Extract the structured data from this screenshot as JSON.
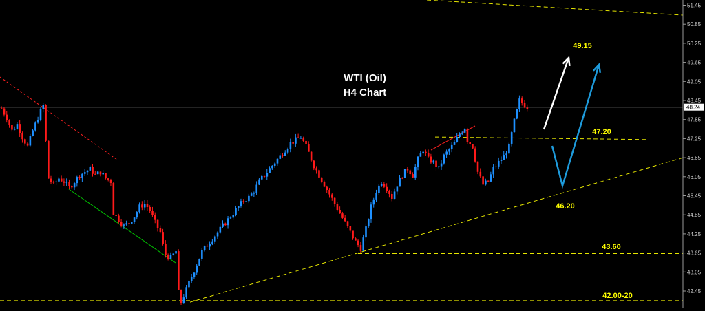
{
  "chart_data": {
    "type": "candlestick",
    "title": "WTI (Oil)",
    "subtitle": "H4 Chart",
    "yaxis": {
      "ticks": [
        "51.45",
        "50.85",
        "50.25",
        "49.65",
        "49.05",
        "48.45",
        "47.85",
        "47.25",
        "46.65",
        "46.05",
        "45.45",
        "44.85",
        "44.25",
        "43.65",
        "43.05",
        "42.45"
      ],
      "range": [
        42.0,
        51.6
      ],
      "position": "right"
    },
    "current_price": "48.24",
    "levels": [
      {
        "label": "49.15",
        "value": 49.15,
        "role": "upside target"
      },
      {
        "label": "47.20",
        "value": 47.2,
        "role": "resistance"
      },
      {
        "label": "46.20",
        "value": 46.2,
        "role": "trendline support"
      },
      {
        "label": "43.60",
        "value": 43.6,
        "role": "support"
      },
      {
        "label": "42.00-20",
        "value": 42.1,
        "role": "major support"
      }
    ],
    "colors": {
      "bull": "#1e90ff",
      "bear": "#ff1a1a",
      "level_line": "#e6e600",
      "level_text": "#ffff00",
      "current_line": "#8c8c8c",
      "arrow_primary": "#ffffff",
      "arrow_alternate": "#1e9bdc",
      "downtrend_line": "#ff2020",
      "channel_line": "#00c000"
    },
    "price_path": [
      [
        0,
        48.2
      ],
      [
        2,
        47.9
      ],
      [
        4,
        47.5
      ],
      [
        6,
        47.7
      ],
      [
        8,
        47.3
      ],
      [
        10,
        47.0
      ],
      [
        12,
        47.5
      ],
      [
        14,
        47.9
      ],
      [
        16,
        48.3
      ],
      [
        18,
        46.0
      ],
      [
        20,
        45.8
      ],
      [
        22,
        46.0
      ],
      [
        24,
        45.9
      ],
      [
        26,
        45.7
      ],
      [
        28,
        45.9
      ],
      [
        30,
        46.1
      ],
      [
        32,
        46.2
      ],
      [
        34,
        46.3
      ],
      [
        36,
        46.1
      ],
      [
        38,
        46.2
      ],
      [
        40,
        46.0
      ],
      [
        42,
        45.9
      ],
      [
        43,
        44.9
      ],
      [
        45,
        44.7
      ],
      [
        47,
        44.5
      ],
      [
        49,
        44.6
      ],
      [
        51,
        44.8
      ],
      [
        53,
        45.1
      ],
      [
        55,
        45.2
      ],
      [
        57,
        45.0
      ],
      [
        59,
        44.6
      ],
      [
        61,
        44.3
      ],
      [
        62,
        43.9
      ],
      [
        63,
        43.6
      ],
      [
        65,
        43.5
      ],
      [
        67,
        43.7
      ],
      [
        68,
        42.4
      ],
      [
        69,
        42.1
      ],
      [
        71,
        42.5
      ],
      [
        73,
        42.9
      ],
      [
        75,
        43.3
      ],
      [
        77,
        43.7
      ],
      [
        79,
        43.9
      ],
      [
        81,
        44.1
      ],
      [
        83,
        44.3
      ],
      [
        85,
        44.5
      ],
      [
        87,
        44.7
      ],
      [
        89,
        44.9
      ],
      [
        91,
        45.1
      ],
      [
        93,
        45.3
      ],
      [
        95,
        45.4
      ],
      [
        97,
        45.6
      ],
      [
        99,
        45.9
      ],
      [
        101,
        46.1
      ],
      [
        103,
        46.3
      ],
      [
        105,
        46.5
      ],
      [
        107,
        46.7
      ],
      [
        109,
        46.9
      ],
      [
        111,
        47.1
      ],
      [
        113,
        47.2
      ],
      [
        115,
        47.3
      ],
      [
        117,
        47.0
      ],
      [
        118,
        46.8
      ],
      [
        120,
        46.4
      ],
      [
        122,
        46.1
      ],
      [
        124,
        45.8
      ],
      [
        126,
        45.5
      ],
      [
        128,
        45.2
      ],
      [
        130,
        44.9
      ],
      [
        132,
        44.6
      ],
      [
        134,
        44.3
      ],
      [
        136,
        44.0
      ],
      [
        138,
        43.8
      ],
      [
        140,
        44.4
      ],
      [
        142,
        45.1
      ],
      [
        144,
        45.6
      ],
      [
        146,
        45.9
      ],
      [
        148,
        45.7
      ],
      [
        150,
        45.4
      ],
      [
        152,
        45.8
      ],
      [
        154,
        46.1
      ],
      [
        156,
        46.3
      ],
      [
        158,
        46.1
      ],
      [
        160,
        46.6
      ],
      [
        162,
        46.9
      ],
      [
        164,
        46.6
      ],
      [
        166,
        46.5
      ],
      [
        168,
        46.3
      ],
      [
        170,
        46.7
      ],
      [
        172,
        46.9
      ],
      [
        174,
        47.1
      ],
      [
        176,
        47.4
      ],
      [
        178,
        47.6
      ],
      [
        179,
        47.2
      ],
      [
        181,
        47.0
      ],
      [
        183,
        46.2
      ],
      [
        185,
        45.8
      ],
      [
        187,
        45.9
      ],
      [
        189,
        46.3
      ],
      [
        191,
        46.5
      ],
      [
        193,
        46.7
      ],
      [
        195,
        47.0
      ],
      [
        197,
        47.8
      ],
      [
        199,
        48.45
      ],
      [
        201,
        48.3
      ],
      [
        202,
        48.24
      ]
    ]
  }
}
